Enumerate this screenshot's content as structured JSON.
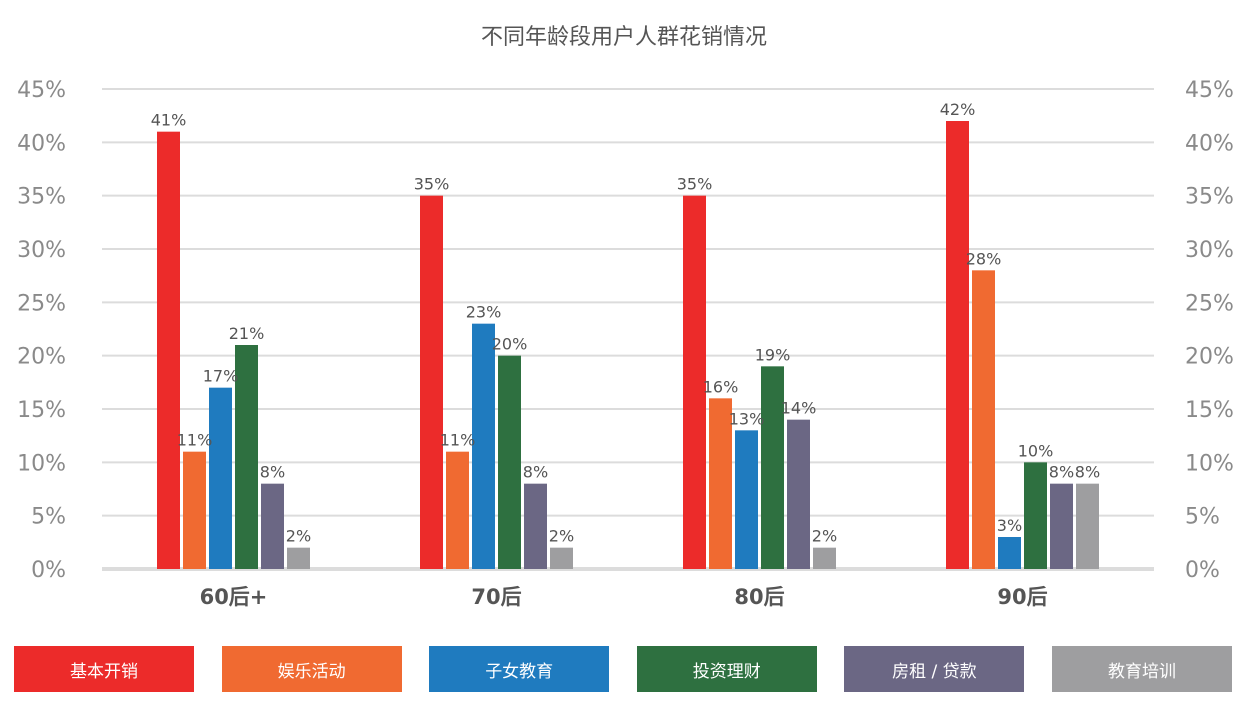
{
  "chart_data": {
    "type": "bar",
    "title": "不同年龄段用户人群花销情况",
    "xlabel": "",
    "ylabel": "",
    "ylim": [
      0,
      45
    ],
    "y_ticks": [
      "0%",
      "5%",
      "10%",
      "15%",
      "20%",
      "25%",
      "30%",
      "35%",
      "40%",
      "45%"
    ],
    "categories": [
      "60后+",
      "70后",
      "80后",
      "90后"
    ],
    "series": [
      {
        "name": "基本开销",
        "color": "#ec2b2a",
        "values": [
          41,
          35,
          35,
          42
        ],
        "labels": [
          "41%",
          "35%",
          "35%",
          "42%"
        ]
      },
      {
        "name": "娱乐活动",
        "color": "#f06a31",
        "values": [
          11,
          11,
          16,
          28
        ],
        "labels": [
          "11%",
          "11%",
          "16%",
          "28%"
        ]
      },
      {
        "name": "子女教育",
        "color": "#1f7bbf",
        "values": [
          17,
          23,
          13,
          3
        ],
        "labels": [
          "17%",
          "23%",
          "13%",
          "3%"
        ]
      },
      {
        "name": "投资理财",
        "color": "#2e7040",
        "values": [
          21,
          20,
          19,
          10
        ],
        "labels": [
          "21%",
          "20%",
          "19%",
          "10%"
        ]
      },
      {
        "name": "房租 / 贷款",
        "color": "#6b6784",
        "values": [
          8,
          8,
          14,
          8
        ],
        "labels": [
          "8%",
          "8%",
          "14%",
          "8%"
        ]
      },
      {
        "name": "教育培训",
        "color": "#9e9ea0",
        "values": [
          2,
          2,
          2,
          8
        ],
        "labels": [
          "2%",
          "2%",
          "2%",
          "8%"
        ]
      }
    ],
    "grid": true,
    "legend_position": "bottom",
    "colors": {
      "grid": "#dcdcdc",
      "axis_text": "#8a8a8a",
      "category_text": "#555555",
      "title_text": "#555555",
      "label_text": "#555555"
    }
  }
}
